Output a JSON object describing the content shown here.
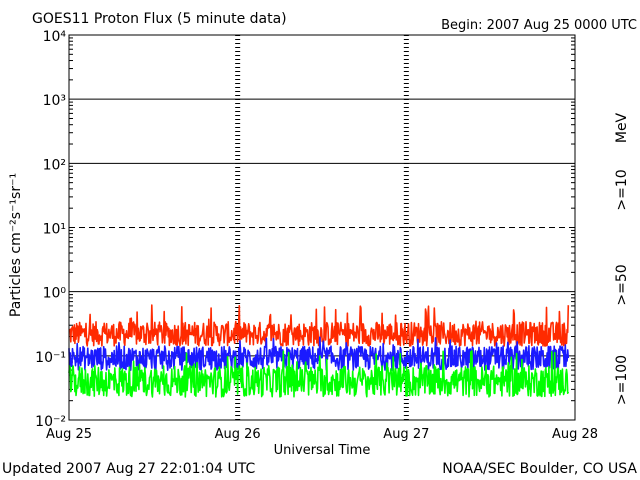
{
  "chart_data": {
    "type": "line",
    "title": "GOES11 Proton Flux (5 minute data)",
    "begin": "Begin: 2007 Aug 25 0000 UTC",
    "xlabel": "Universal Time",
    "ylabel": "Particles cm⁻²s⁻¹sr⁻¹",
    "y_scale": "log",
    "ylim": [
      0.01,
      10000
    ],
    "y_ticks": [
      "10⁴",
      "10³",
      "10²",
      "10¹",
      "10⁰",
      "10⁻¹",
      "10⁻²"
    ],
    "x_ticks": [
      "Aug 25",
      "Aug 26",
      "Aug 27",
      "Aug 28"
    ],
    "xlim_days": [
      0,
      3
    ],
    "data_end_day": 2.96,
    "units_label": "MeV",
    "series": [
      {
        "name": ">=10",
        "color": "#ff2a00",
        "base": 0.22,
        "spread": 0.12,
        "spike_max": 0.62,
        "x": [
          0,
          0.5,
          1,
          1.5,
          2,
          2.5,
          2.96
        ],
        "values": [
          0.22,
          0.25,
          0.21,
          0.2,
          0.2,
          0.19,
          0.19
        ]
      },
      {
        "name": ">=50",
        "color": "#1a1aff",
        "base": 0.092,
        "spread": 0.05,
        "spike_max": 0.2,
        "x": [
          0,
          0.5,
          1,
          1.5,
          2,
          2.5,
          2.96
        ],
        "values": [
          0.1,
          0.1,
          0.09,
          0.09,
          0.09,
          0.085,
          0.08
        ]
      },
      {
        "name": ">=100",
        "color": "#00ff00",
        "base": 0.04,
        "spread": 0.03,
        "spike_max": 0.12,
        "x": [
          0,
          0.5,
          1,
          1.5,
          2,
          2.5,
          2.96
        ],
        "values": [
          0.04,
          0.045,
          0.04,
          0.04,
          0.04,
          0.038,
          0.035
        ]
      }
    ],
    "grid": true
  },
  "footer": {
    "updated": "Updated 2007 Aug 27 22:01:04 UTC",
    "credit": "NOAA/SEC Boulder, CO USA"
  }
}
